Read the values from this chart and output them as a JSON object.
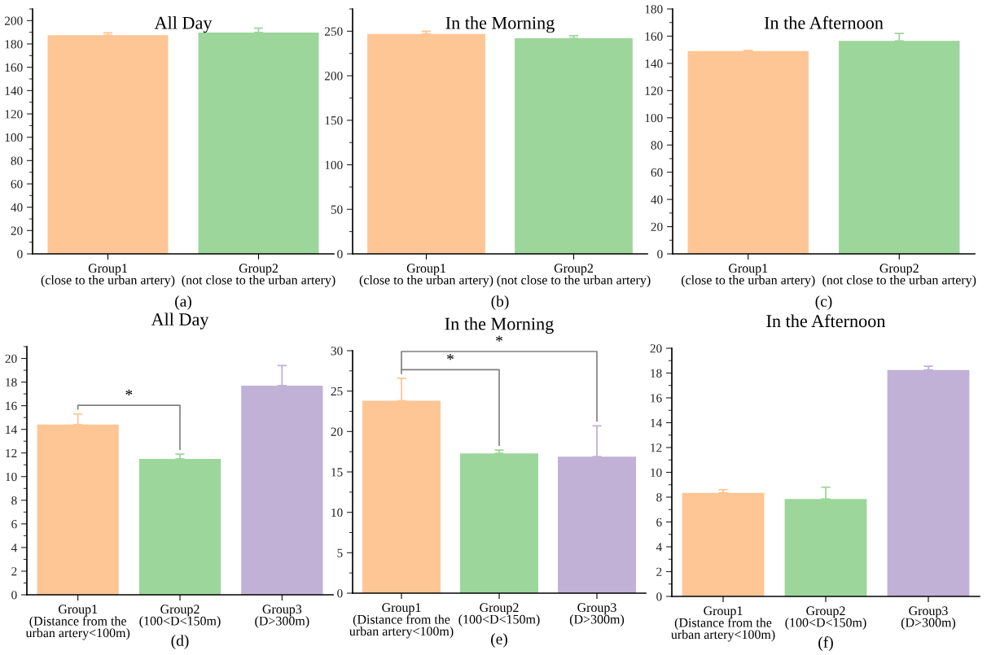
{
  "chart_data": [
    {
      "type": "bar",
      "title": "All Day",
      "categories": [
        "Group1\n(close to the urban artery)",
        "Group2\n(not close to the urban artery)"
      ],
      "values": [
        187.5,
        189.8
      ],
      "colors": [
        "#fec695",
        "#9dd69b"
      ],
      "errors": [
        [
          187.5,
          189.5
        ],
        [
          189.8,
          193.5
        ]
      ],
      "ylim": [
        0,
        210
      ],
      "yticks": [
        0,
        20,
        40,
        60,
        80,
        100,
        120,
        140,
        160,
        180,
        200
      ],
      "annotations": [
        "(a)"
      ]
    },
    {
      "type": "bar",
      "title": "In the Morning",
      "categories": [
        "Group1\n(close to the urban artery)",
        "Group2\n(not close to the urban artery)"
      ],
      "values": [
        247,
        242
      ],
      "colors": [
        "#fec695",
        "#9dd69b"
      ],
      "errors": [
        [
          247,
          250
        ],
        [
          242,
          245
        ]
      ],
      "ylim": [
        0,
        275
      ],
      "yticks": [
        0,
        50,
        100,
        150,
        200,
        250
      ],
      "annotations": [
        "(b)"
      ]
    },
    {
      "type": "bar",
      "title": "In the Afternoon",
      "categories": [
        "Group1\n(close to the urban artery)",
        "Group2\n(not close to the urban artery)"
      ],
      "values": [
        149,
        156.5
      ],
      "colors": [
        "#fec695",
        "#9dd69b"
      ],
      "errors": [
        [
          149,
          149.5
        ],
        [
          156.5,
          162
        ]
      ],
      "ylim": [
        0,
        180
      ],
      "yticks": [
        0,
        20,
        40,
        60,
        80,
        100,
        120,
        140,
        160,
        180
      ],
      "annotations": [
        "(c)"
      ]
    },
    {
      "type": "bar",
      "title": "All Day",
      "categories": [
        "Group1\n(Distance from the\nurban artery<100m)",
        "Group2\n(100<D<150m)",
        "Group3\n(D>300m)"
      ],
      "values": [
        14.4,
        11.5,
        17.7
      ],
      "colors": [
        "#fec695",
        "#9dd69b",
        "#c2b1d6"
      ],
      "errors": [
        [
          14.4,
          15.3
        ],
        [
          11.5,
          11.9
        ],
        [
          17.7,
          19.4
        ]
      ],
      "ylim": [
        0,
        21
      ],
      "yticks": [
        0,
        2,
        4,
        6,
        8,
        10,
        12,
        14,
        16,
        18,
        20
      ],
      "annotations": [
        "(d)",
        "*"
      ]
    },
    {
      "type": "bar",
      "title": "In the Morning",
      "categories": [
        "Group1\n(Distance from the\nurban artery<100m)",
        "Group2\n(100<D<150m)",
        "Group3\n(D>300m)"
      ],
      "values": [
        23.8,
        17.3,
        16.9
      ],
      "colors": [
        "#fec695",
        "#9dd69b",
        "#c2b1d6"
      ],
      "errors": [
        [
          23.8,
          26.6
        ],
        [
          17.3,
          17.7
        ],
        [
          16.9,
          20.7
        ]
      ],
      "ylim": [
        0,
        30
      ],
      "yticks": [
        0,
        5,
        10,
        15,
        20,
        25,
        30
      ],
      "annotations": [
        "(e)",
        "*",
        "*"
      ]
    },
    {
      "type": "bar",
      "title": "In the Afternoon",
      "categories": [
        "Group1\n(Distance from the\nurban artery<100m)",
        "Group2\n(100<D<150m)",
        "Group3\n(D>300m)"
      ],
      "values": [
        8.35,
        7.85,
        18.25
      ],
      "colors": [
        "#fec695",
        "#9dd69b",
        "#c2b1d6"
      ],
      "errors": [
        [
          8.35,
          8.6
        ],
        [
          7.85,
          8.8
        ],
        [
          18.25,
          18.55
        ]
      ],
      "ylim": [
        0,
        20
      ],
      "yticks": [
        0,
        2,
        4,
        6,
        8,
        10,
        12,
        14,
        16,
        18,
        20
      ],
      "annotations": [
        "(f)"
      ]
    }
  ]
}
